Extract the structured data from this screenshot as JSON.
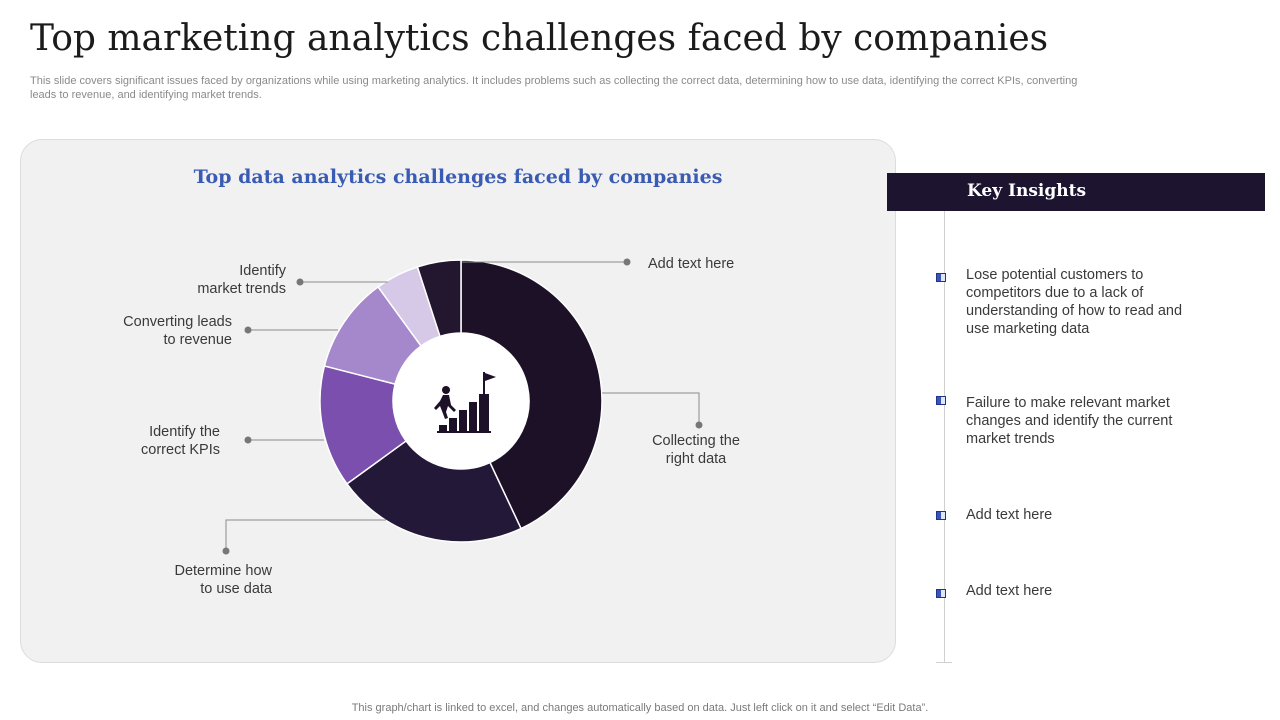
{
  "title": "Top marketing analytics challenges faced by companies",
  "subtitle": "This slide covers significant issues faced by organizations while using marketing analytics. It includes problems such as collecting the correct data, determining how to use data, identifying the correct KPIs, converting leads to revenue, and identifying market trends.",
  "chart_data": {
    "type": "pie",
    "subtype": "donut",
    "title": "Top data analytics challenges faced by companies",
    "center_icon": "person-climbing-bar-steps-to-flag-icon",
    "slices": [
      {
        "label": "Collecting the right data",
        "value": 43,
        "color": "#1c1127"
      },
      {
        "label": "Determine how to use data",
        "value": 22,
        "color": "#241838"
      },
      {
        "label": "Identify the correct KPIs",
        "value": 14,
        "color": "#7a4fae"
      },
      {
        "label": "Converting leads to revenue",
        "value": 11,
        "color": "#a587cb"
      },
      {
        "label": "Identify market trends",
        "value": 5,
        "color": "#d6c9e8"
      },
      {
        "label": "Add text here",
        "value": 5,
        "color": "#22172f"
      }
    ]
  },
  "labels": {
    "identify_market_trends": "Identify\nmarket trends",
    "converting_leads": "Converting leads\nto revenue",
    "identify_kpis": "Identify the\ncorrect KPIs",
    "determine_how": "Determine how\nto use data",
    "add_text": "Add text here",
    "collecting_data": "Collecting the\nright data"
  },
  "insights": {
    "header": "Key Insights",
    "items": [
      "Lose potential customers to competitors due to a lack of understanding of how to read and use marketing data",
      "Failure to make relevant market changes and identify the current market trends",
      "Add text here",
      "Add text here"
    ]
  },
  "footer": "This graph/chart is linked to excel,  and changes automatically based on data. Just left click on it and select “Edit Data”."
}
